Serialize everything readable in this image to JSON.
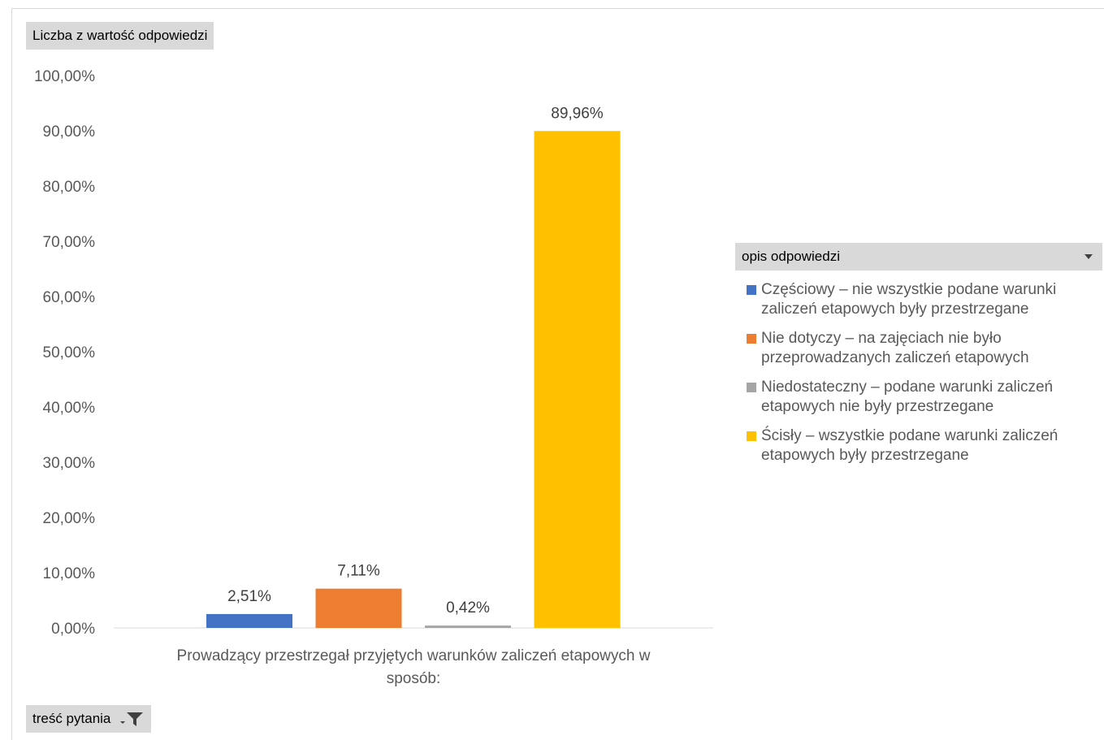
{
  "value_field": "Liczba z wartość odpowiedzi",
  "legend_field": "opis odpowiedzi",
  "filter_field": "treść pytania",
  "chart_data": {
    "type": "bar",
    "categories": [
      "Prowadzący przestrzegał przyjętych warunków zaliczeń etapowych w sposób:"
    ],
    "xlabel_lines": [
      "Prowadzący przestrzegał przyjętych warunków zaliczeń etapowych w",
      "sposób:"
    ],
    "ylim": [
      0,
      100
    ],
    "yticks": [
      "0,00%",
      "10,00%",
      "20,00%",
      "30,00%",
      "40,00%",
      "50,00%",
      "60,00%",
      "70,00%",
      "80,00%",
      "90,00%",
      "100,00%"
    ],
    "legend_position": "right",
    "series": [
      {
        "name": "Częściowy – nie wszystkie podane warunki zaliczeń etapowych były przestrzegane",
        "name_lines": [
          "Częściowy – nie wszystkie podane warunki",
          "zaliczeń etapowych były przestrzegane"
        ],
        "value": 2.51,
        "label": "2,51%",
        "color": "#4472c4"
      },
      {
        "name": "Nie dotyczy – na zajęciach nie było przeprowadzanych zaliczeń etapowych",
        "name_lines": [
          "Nie dotyczy – na zajęciach nie było",
          "przeprowadzanych zaliczeń etapowych"
        ],
        "value": 7.11,
        "label": "7,11%",
        "color": "#ed7d31"
      },
      {
        "name": "Niedostateczny – podane warunki zaliczeń etapowych nie były przestrzegane",
        "name_lines": [
          "Niedostateczny – podane warunki zaliczeń",
          "etapowych nie były przestrzegane"
        ],
        "value": 0.42,
        "label": "0,42%",
        "color": "#a5a5a5"
      },
      {
        "name": "Ścisły – wszystkie podane warunki zaliczeń etapowych były przestrzegane",
        "name_lines": [
          "Ścisły – wszystkie podane warunki zaliczeń",
          "etapowych były przestrzegane"
        ],
        "value": 89.96,
        "label": "89,96%",
        "color": "#ffc000"
      }
    ]
  }
}
